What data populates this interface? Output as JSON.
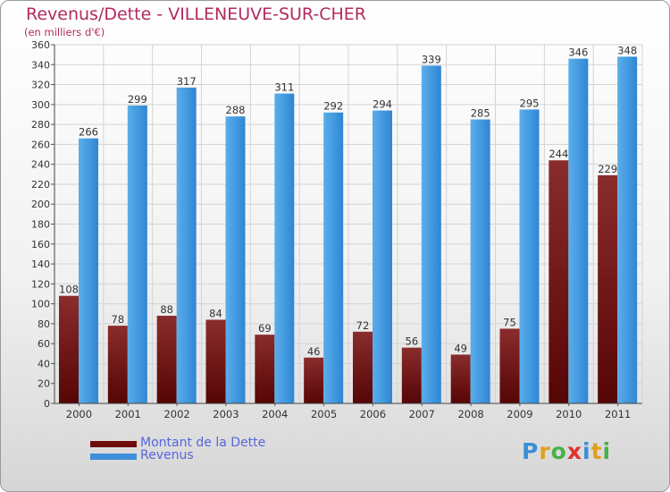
{
  "header": {
    "title": "Revenus/Dette - VILLENEUVE-SUR-CHER",
    "subtitle": "(en milliers d'€)"
  },
  "chart_data": {
    "type": "bar",
    "title": "Revenus/Dette - VILLENEUVE-SUR-CHER",
    "subtitle": "(en milliers d'€)",
    "categories": [
      "2000",
      "2001",
      "2002",
      "2003",
      "2004",
      "2005",
      "2006",
      "2007",
      "2008",
      "2009",
      "2010",
      "2011"
    ],
    "series": [
      {
        "name": "Montant de la Dette",
        "values": [
          108,
          78,
          88,
          84,
          69,
          46,
          72,
          56,
          49,
          75,
          244,
          229
        ],
        "color": "#7a1c1c"
      },
      {
        "name": "Revenus",
        "values": [
          266,
          299,
          317,
          288,
          311,
          292,
          294,
          339,
          285,
          295,
          346,
          348
        ],
        "color": "#4a9de0"
      }
    ],
    "ylim": [
      0,
      360
    ],
    "ytick_step": 20,
    "grid": true,
    "legend": "bottom-left"
  },
  "legend": {
    "items": [
      {
        "label": "Montant de la Dette",
        "color": "#6e0c0c"
      },
      {
        "label": "Revenus",
        "color": "#3d8fd9"
      }
    ]
  },
  "logo": {
    "letters": [
      "P",
      "r",
      "o",
      "x",
      "i",
      "t",
      "i"
    ],
    "colors": [
      "#3b8fd6",
      "#e0a020",
      "#48b048",
      "#e03030",
      "#3b8fd6",
      "#e0a020",
      "#48b048"
    ]
  }
}
